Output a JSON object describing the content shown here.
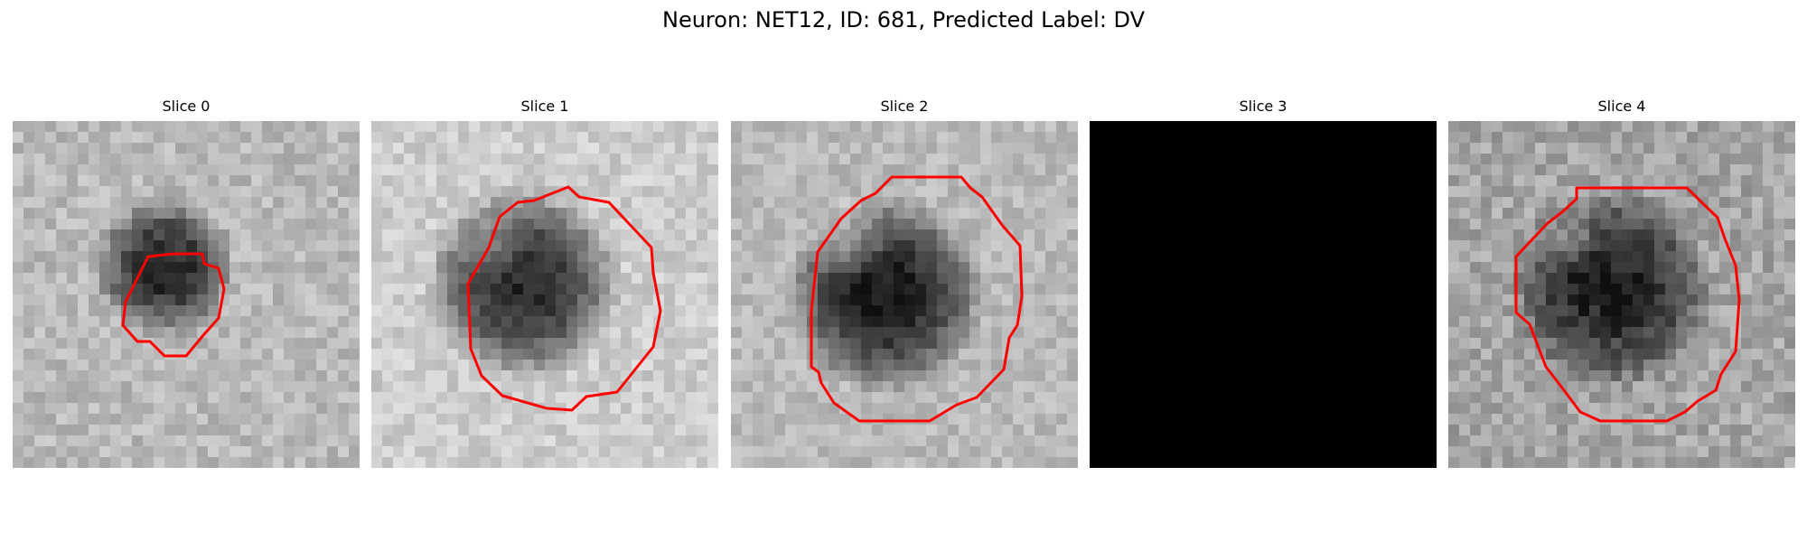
{
  "figure": {
    "title": "Neuron: NET12, ID: 681, Predicted Label: DV",
    "contour_color": "#ff0000"
  },
  "slices": [
    {
      "label": "Slice 0"
    },
    {
      "label": "Slice 1"
    },
    {
      "label": "Slice 2"
    },
    {
      "label": "Slice 3"
    },
    {
      "label": "Slice 4"
    }
  ]
}
